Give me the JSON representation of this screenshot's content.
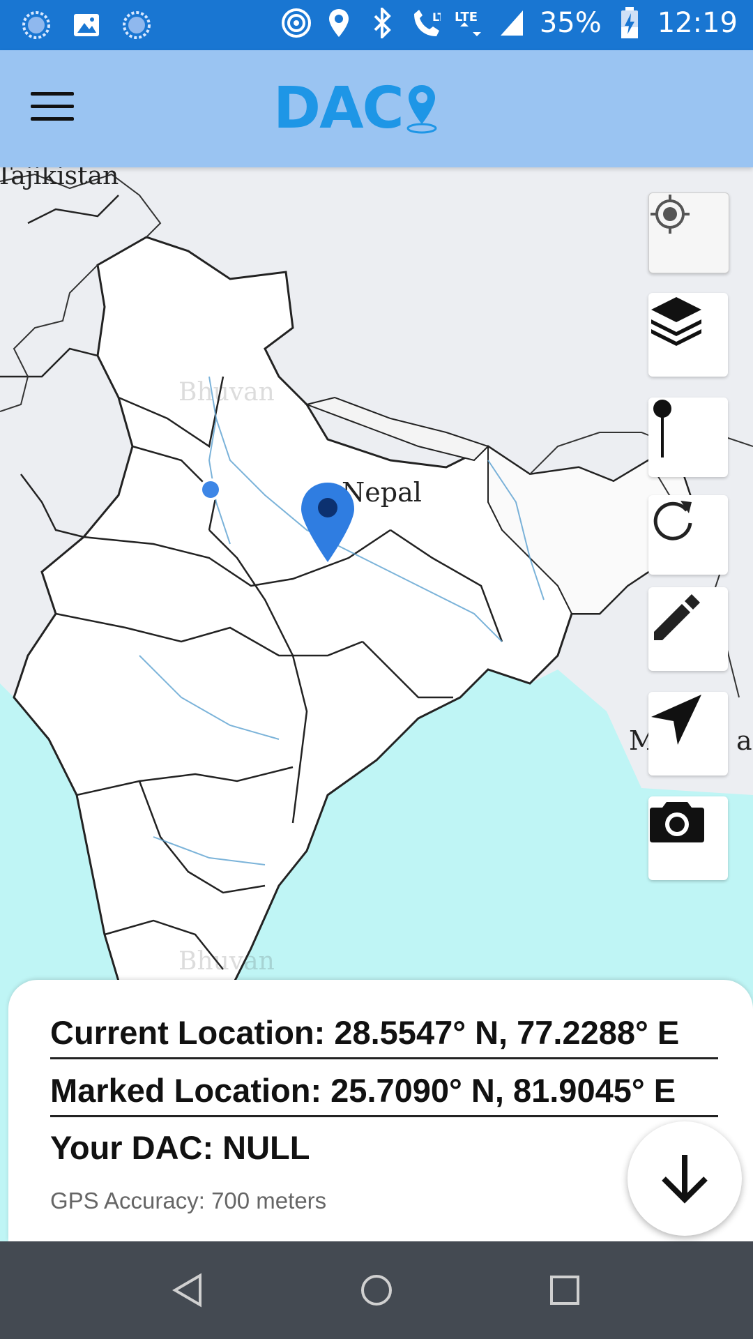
{
  "status_bar": {
    "battery": "35%",
    "time": "12:19",
    "lte1": "LTE",
    "lte2": "LTE"
  },
  "app_bar": {
    "logo_text": "DAC"
  },
  "map": {
    "labels": {
      "tajikistan": "Tajikistan",
      "nepal": "Nepal",
      "myanmar_fragment": "M",
      "myanmar_fragment_end": "a"
    },
    "watermark": "Bhuvan"
  },
  "info": {
    "current_location": "Current Location: 28.5547° N, 77.2288° E",
    "marked_location": "Marked Location: 25.7090° N, 81.9045° E",
    "your_dac": "Your DAC: NULL",
    "gps_accuracy": "GPS Accuracy: 700 meters"
  },
  "colors": {
    "status_bar": "#1976d2",
    "app_bar": "#9ac4f2",
    "logo": "#1e96e6",
    "sea": "#bff5f5",
    "marker": "#2f7de1",
    "nav_bar": "#444a52"
  },
  "icons": [
    "my-location-icon",
    "layers-icon",
    "pin-icon",
    "refresh-icon",
    "pencil-icon",
    "navigation-icon",
    "camera-icon",
    "arrow-down-icon"
  ]
}
